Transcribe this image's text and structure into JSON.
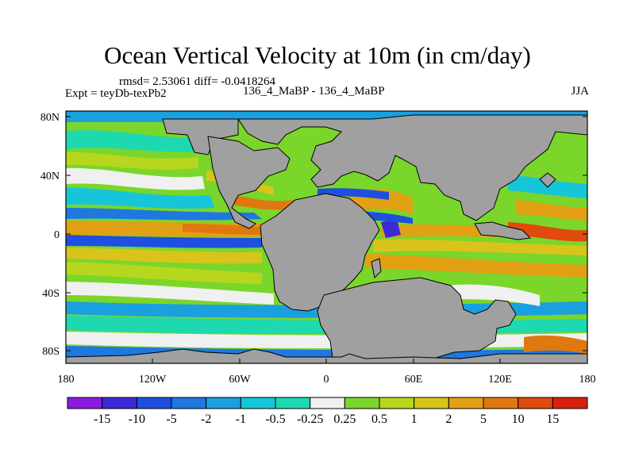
{
  "title": "Ocean Vertical Velocity at 10m (in cm/day)",
  "stats_line": "rmsd= 2.53061 diff= -0.0418264",
  "expt_line": "Expt = teyDb-texPb2",
  "case_line": "136_4_MaBP - 136_4_MaBP",
  "season": "JJA",
  "lat_labels": [
    "80N",
    "40N",
    "0",
    "40S",
    "80S"
  ],
  "lon_labels": [
    "180",
    "120W",
    "60W",
    "0",
    "60E",
    "120E",
    "180"
  ],
  "colorbar": {
    "labels": [
      "-15",
      "-10",
      "-5",
      "-2",
      "-1",
      "-0.5",
      "-0.25",
      "0.25",
      "0.5",
      "1",
      "2",
      "5",
      "10",
      "15"
    ],
    "colors": [
      "#8a1be0",
      "#3b2bd6",
      "#1f4fe0",
      "#1e78e0",
      "#1aa0de",
      "#16c6d8",
      "#1ed8b0",
      "#f0f0f0",
      "#7ad62a",
      "#b8d61e",
      "#d8c41a",
      "#e2a014",
      "#e07810",
      "#e04a0c",
      "#d8200a"
    ]
  },
  "colors": {
    "land": "#a0a0a0",
    "frame": "#000000"
  }
}
